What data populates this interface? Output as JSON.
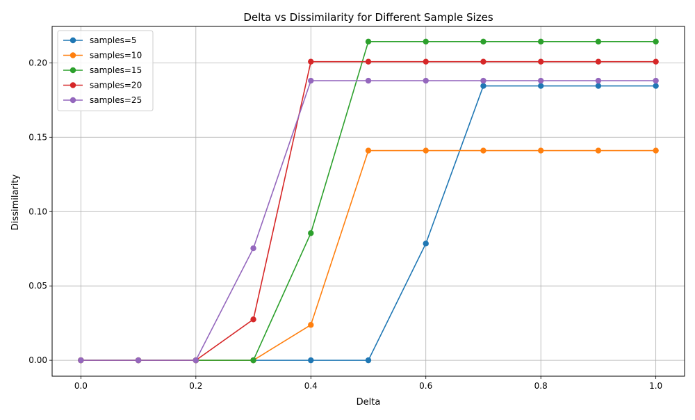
{
  "chart_data": {
    "type": "line",
    "title": "Delta vs Dissimilarity for Different Sample Sizes",
    "xlabel": "Delta",
    "ylabel": "Dissimilarity",
    "xlim": [
      -0.05,
      1.05
    ],
    "ylim": [
      -0.0107,
      0.2245
    ],
    "x_ticks": [
      "0.0",
      "0.2",
      "0.4",
      "0.6",
      "0.8",
      "1.0"
    ],
    "y_ticks": [
      "0.00",
      "0.05",
      "0.10",
      "0.15",
      "0.20"
    ],
    "grid": true,
    "legend_position": "top-left",
    "x": [
      0.0,
      0.1,
      0.2,
      0.3,
      0.4,
      0.5,
      0.6,
      0.7,
      0.8,
      0.9,
      1.0
    ],
    "series": [
      {
        "name": "samples=5",
        "color": "#1f77b4",
        "values": [
          0,
          0,
          0,
          0,
          0,
          0,
          0.0785,
          0.1845,
          0.1845,
          0.1845,
          0.1845
        ]
      },
      {
        "name": "samples=10",
        "color": "#ff7f0e",
        "values": [
          0,
          0,
          0,
          0,
          0.0238,
          0.141,
          0.141,
          0.141,
          0.141,
          0.141,
          0.141
        ]
      },
      {
        "name": "samples=15",
        "color": "#2ca02c",
        "values": [
          0,
          0,
          0,
          0,
          0.0855,
          0.2143,
          0.2143,
          0.2143,
          0.2143,
          0.2143,
          0.2143
        ]
      },
      {
        "name": "samples=20",
        "color": "#d62728",
        "values": [
          0,
          0,
          0,
          0.0275,
          0.2008,
          0.2008,
          0.2008,
          0.2008,
          0.2008,
          0.2008,
          0.2008
        ]
      },
      {
        "name": "samples=25",
        "color": "#9467bd",
        "values": [
          0,
          0,
          0,
          0.0753,
          0.188,
          0.188,
          0.188,
          0.188,
          0.188,
          0.188,
          0.188
        ]
      }
    ]
  }
}
